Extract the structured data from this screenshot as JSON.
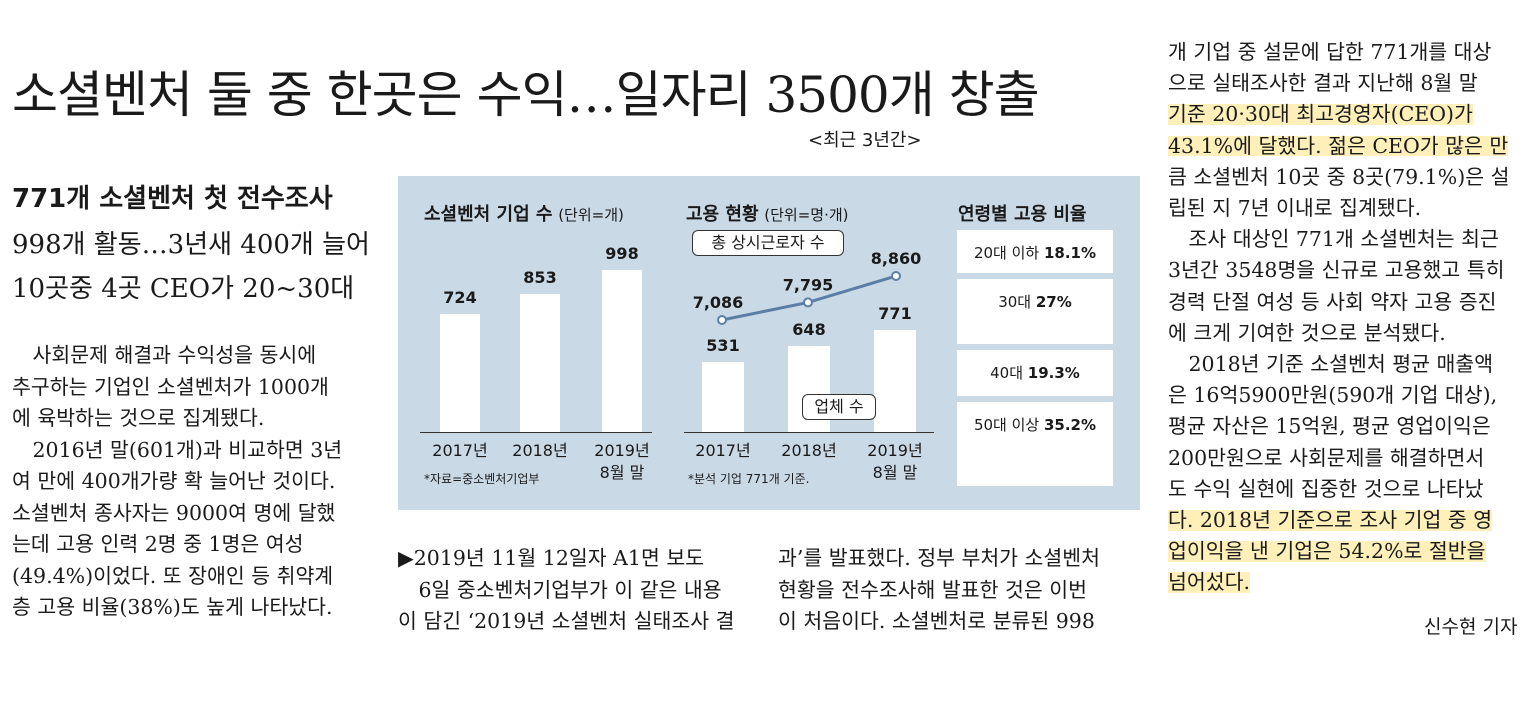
{
  "headline": "소셜벤처 둘 중 한곳은 수익…일자리 3500개 창출",
  "period_note": "<최근 3년간>",
  "subheads": [
    "771개 소셜벤처 첫 전수조사",
    "998개 활동…3년새 400개 늘어",
    "10곳중 4곳 CEO가 20~30대"
  ],
  "left_column": [
    "　사회문제 해결과 수익성을 동시에",
    "추구하는 기업인 소셜벤처가 1000개",
    "에 육박하는 것으로 집계됐다.",
    "　2016년 말(601개)과 비교하면 3년",
    "여 만에 400개가량 확 늘어난 것이다.",
    "소셜벤처 종사자는 9000여 명에 달했",
    "는데 고용 인력 2명 중 1명은 여성",
    "(49.4%)이었다. 또 장애인 등 취약계",
    "층 고용 비율(38%)도 높게 나타났다."
  ],
  "middle_column": [
    "▶2019년 11월 12일자 A1면 보도",
    "　6일 중소벤처기업부가 이 같은 내용",
    "이 담긴 ‘2019년 소셜벤처 실태조사 결"
  ],
  "middle2_column": [
    "과’를 발표했다. 정부 부처가 소셜벤처",
    "현황을 전수조사해 발표한 것은 이번",
    "이 처음이다. 소셜벤처로 분류된 998"
  ],
  "right_column": [
    "개 기업 중 설문에 답한 771개를 대상",
    "으로 실태조사한 결과 지난해 8월 말",
    "기준 20·30대 최고경영자(CEO)가",
    "43.1%에 달했다. 젊은 CEO가 많은 만",
    "큼 소셜벤처 10곳 중 8곳(79.1%)은 설",
    "립된 지 7년 이내로 집계됐다.",
    "　조사 대상인 771개 소셜벤처는 최근",
    "3년간 3548명을 신규로 고용했고 특히",
    "경력 단절 여성 등 사회 약자 고용 증진",
    "에 크게 기여한 것으로 분석됐다.",
    "　2018년 기준 소셜벤처 평균 매출액",
    "은 16억5900만원(590개 기업 대상),",
    "평균 자산은 15억원, 평균 영업이익은",
    "200만원으로 사회문제를 해결하면서",
    "도 수익 실현에 집중한 것으로 나타났",
    "다. 2018년 기준으로 조사 기업 중 영",
    "업이익을 낸 기업은 54.2%로 절반을",
    "넘어섰다."
  ],
  "byline": "신수현 기자",
  "chart_data": [
    {
      "type": "bar",
      "title": "소셜벤처 기업 수",
      "unit": "(단위=개)",
      "categories": [
        "2017년",
        "2018년",
        "2019년\n8월 말"
      ],
      "values": [
        724,
        853,
        998
      ],
      "ylim": [
        0,
        1100
      ],
      "note": "*자료=중소벤처기업부"
    },
    {
      "type": "bar+line",
      "title": "고용 현황",
      "unit": "(단위=명·개)",
      "categories": [
        "2017년",
        "2018년",
        "2019년\n8월 말"
      ],
      "series": [
        {
          "name": "업체 수",
          "type": "bar",
          "values": [
            531,
            648,
            771
          ]
        },
        {
          "name": "총 상시근로자 수",
          "type": "line",
          "values": [
            7086,
            7795,
            8860
          ]
        }
      ],
      "value_labels": {
        "bar": [
          "531",
          "648",
          "771"
        ],
        "line": [
          "7,086",
          "7,795",
          "8,860"
        ]
      },
      "note": "*분석 기업 771개 기준."
    },
    {
      "type": "table",
      "title": "연령별 고용 비율",
      "rows": [
        {
          "label": "20대 이하",
          "value": "18.1%",
          "pct": 18.1
        },
        {
          "label": "30대",
          "value": "27%",
          "pct": 27
        },
        {
          "label": "40대",
          "value": "19.3%",
          "pct": 19.3
        },
        {
          "label": "50대 이상",
          "value": "35.2%",
          "pct": 35.2
        }
      ]
    }
  ]
}
